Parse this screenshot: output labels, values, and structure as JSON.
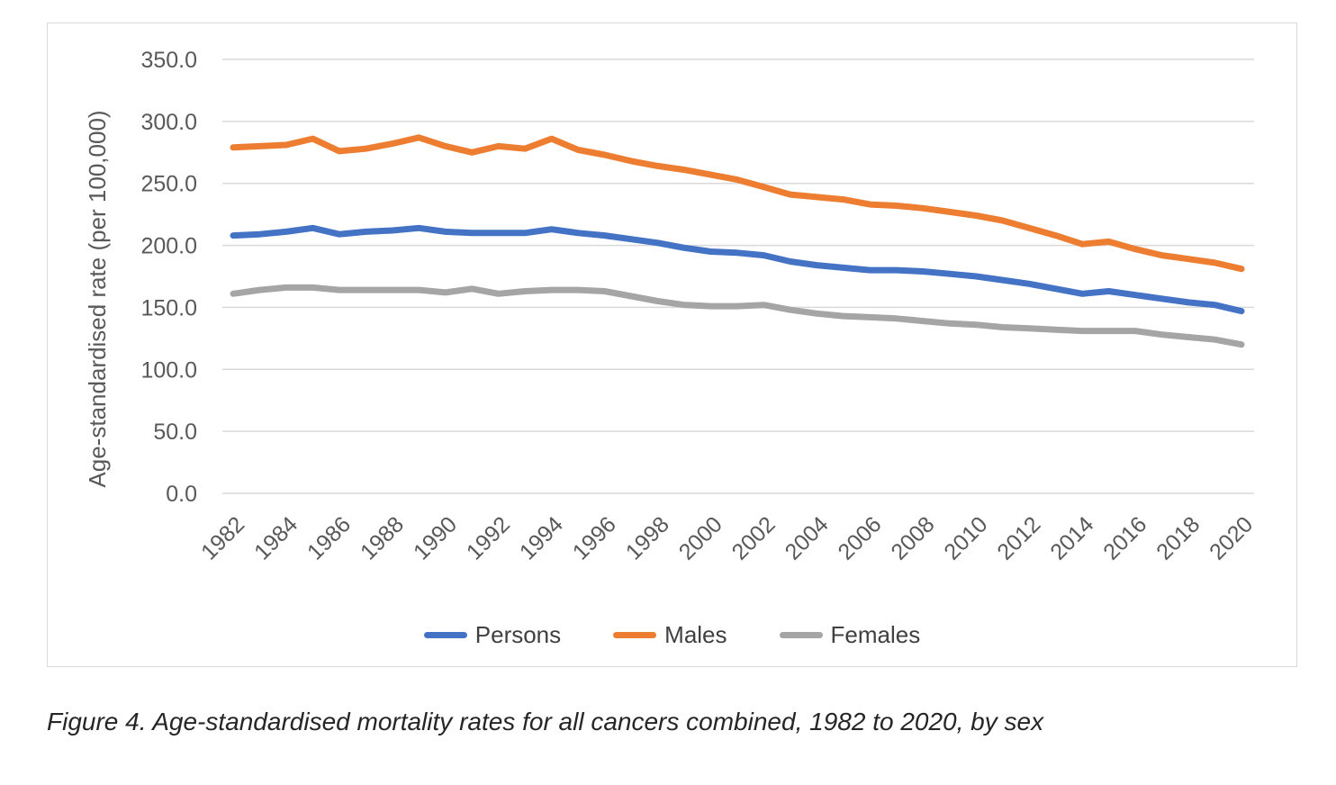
{
  "figure": {
    "caption": "Figure 4. Age-standardised mortality rates for all cancers combined, 1982 to 2020, by sex"
  },
  "chart_data": {
    "type": "line",
    "title": "",
    "xlabel": "",
    "ylabel": "Age-standardised rate (per 100,000)",
    "ylim": [
      0,
      350
    ],
    "grid": true,
    "legend_position": "bottom",
    "y_ticks": [
      "350.0",
      "300.0",
      "250.0",
      "200.0",
      "150.0",
      "100.0",
      "50.0",
      "0.0"
    ],
    "x": [
      1982,
      1983,
      1984,
      1985,
      1986,
      1987,
      1988,
      1989,
      1990,
      1991,
      1992,
      1993,
      1994,
      1995,
      1996,
      1997,
      1998,
      1999,
      2000,
      2001,
      2002,
      2003,
      2004,
      2005,
      2006,
      2007,
      2008,
      2009,
      2010,
      2011,
      2012,
      2013,
      2014,
      2015,
      2016,
      2017,
      2018,
      2019,
      2020
    ],
    "x_tick_labels": [
      "1982",
      "1984",
      "1986",
      "1988",
      "1990",
      "1992",
      "1994",
      "1996",
      "1998",
      "2000",
      "2002",
      "2004",
      "2006",
      "2008",
      "2010",
      "2012",
      "2014",
      "2016",
      "2018",
      "2020"
    ],
    "series": [
      {
        "name": "Persons",
        "color": "#4472C4",
        "values": [
          208,
          209,
          211,
          214,
          209,
          211,
          212,
          214,
          211,
          210,
          210,
          210,
          213,
          210,
          208,
          205,
          202,
          198,
          195,
          194,
          192,
          187,
          184,
          182,
          180,
          180,
          179,
          177,
          175,
          172,
          169,
          165,
          161,
          163,
          160,
          157,
          154,
          152,
          147
        ]
      },
      {
        "name": "Males",
        "color": "#ED7D31",
        "values": [
          279,
          280,
          281,
          286,
          276,
          278,
          282,
          287,
          280,
          275,
          280,
          278,
          286,
          277,
          273,
          268,
          264,
          261,
          257,
          253,
          247,
          241,
          239,
          237,
          233,
          232,
          230,
          227,
          224,
          220,
          214,
          208,
          201,
          203,
          197,
          192,
          189,
          186,
          181
        ]
      },
      {
        "name": "Females",
        "color": "#A5A5A5",
        "values": [
          161,
          164,
          166,
          166,
          164,
          164,
          164,
          164,
          162,
          165,
          161,
          163,
          164,
          164,
          163,
          159,
          155,
          152,
          151,
          151,
          152,
          148,
          145,
          143,
          142,
          141,
          139,
          137,
          136,
          134,
          133,
          132,
          131,
          131,
          131,
          128,
          126,
          124,
          120
        ]
      }
    ],
    "style": {
      "gridline_color": "#D9D9D9",
      "tick_label_color": "#595959",
      "axis_title_color": "#595959",
      "line_width": 7
    }
  }
}
